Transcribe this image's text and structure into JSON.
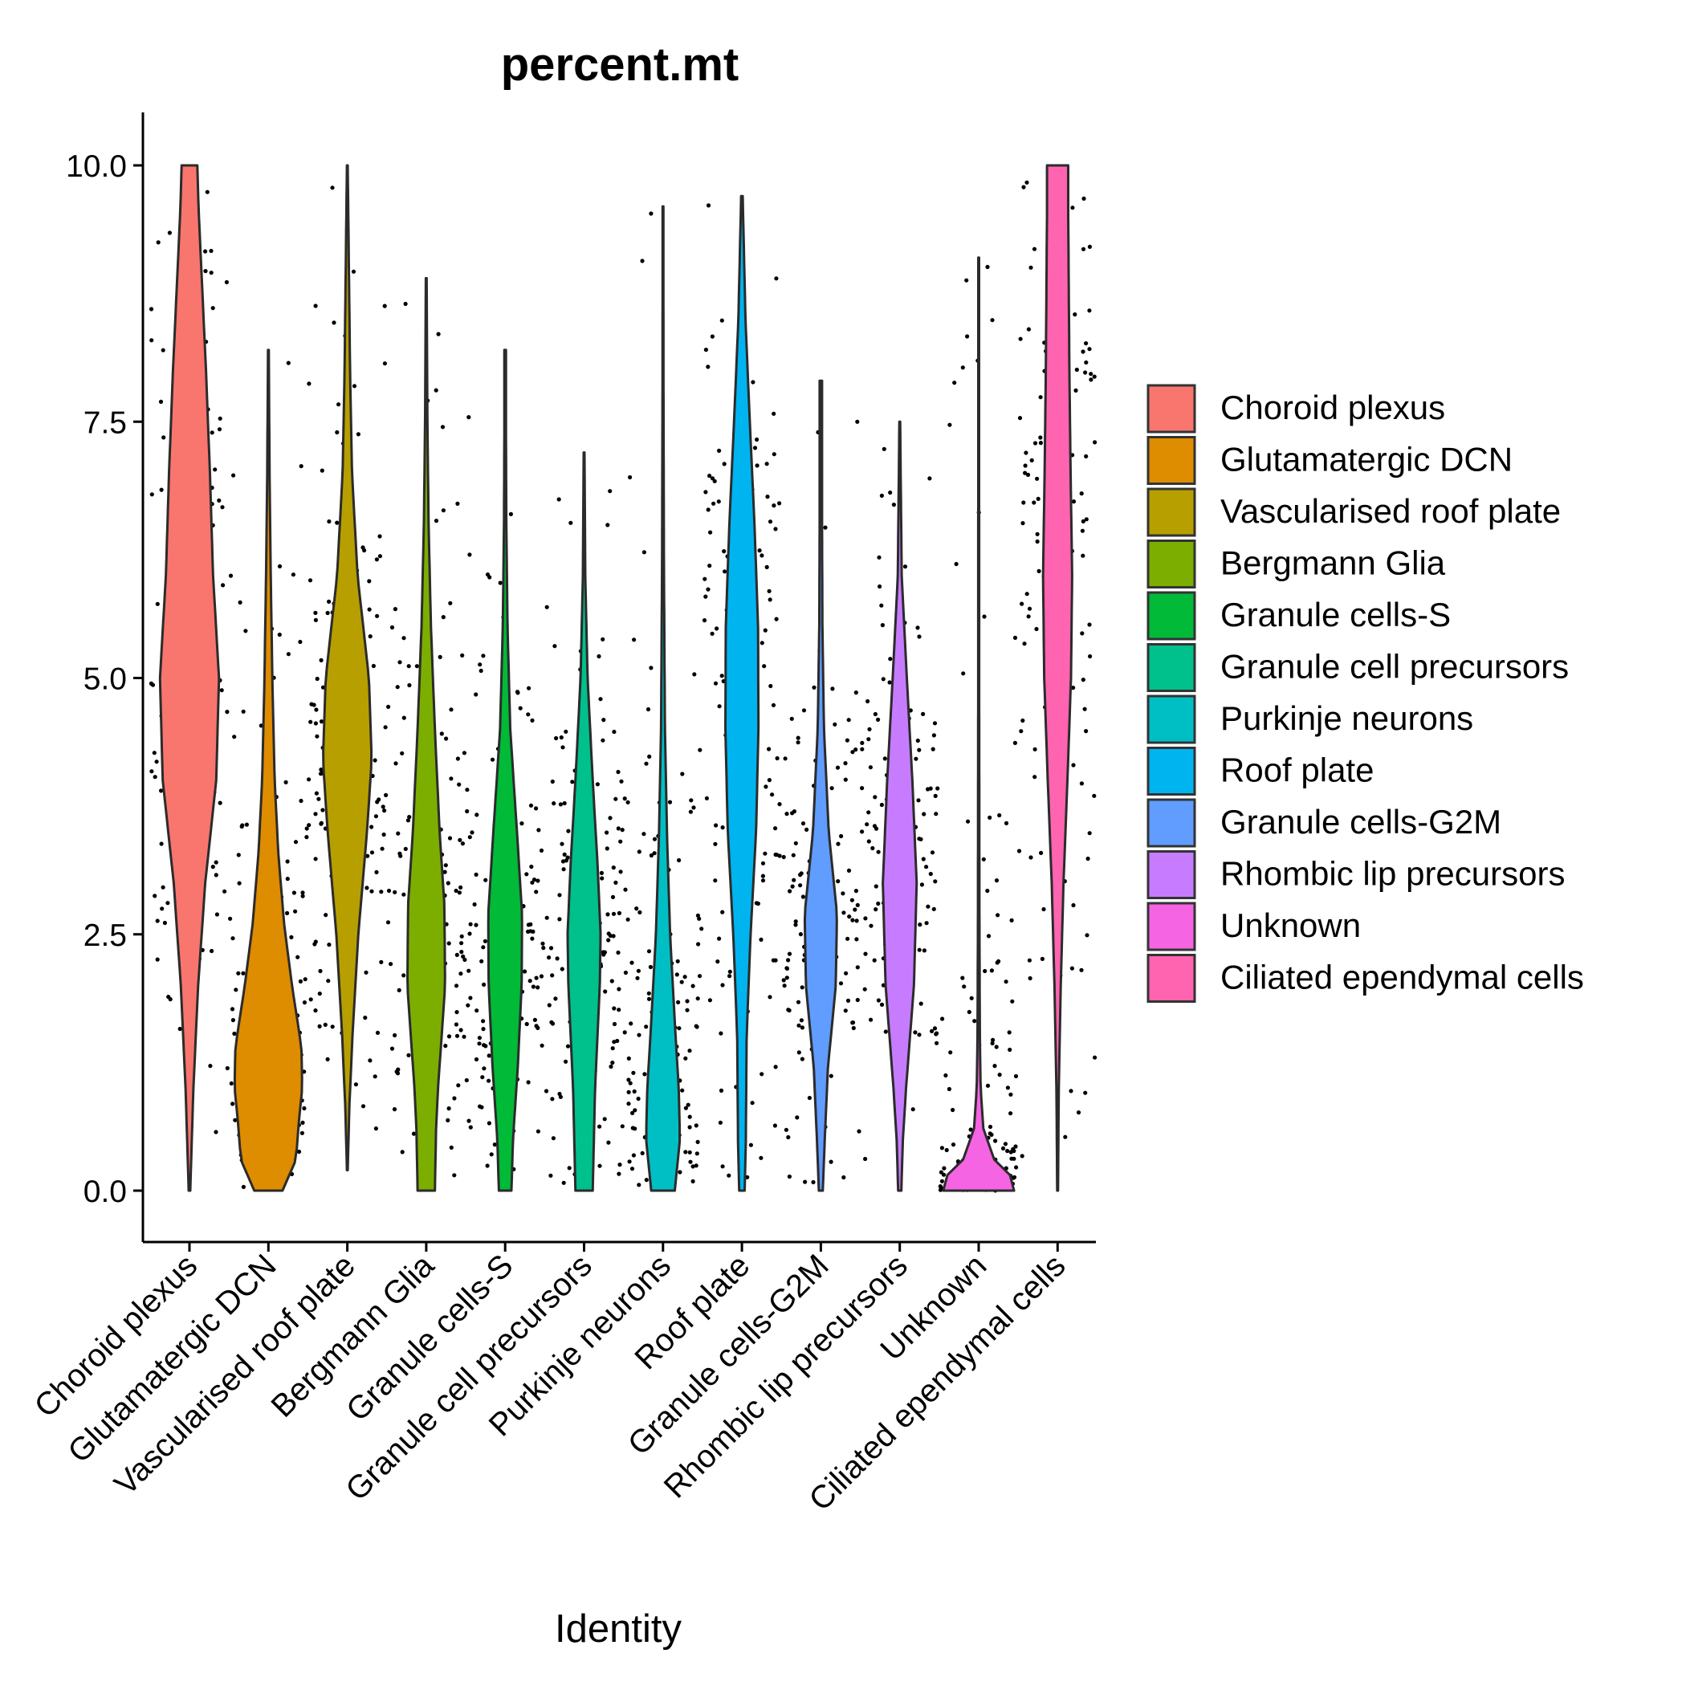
{
  "chart_data": {
    "type": "violin",
    "title": "percent.mt",
    "xlabel": "Identity",
    "ylabel": "",
    "ylim": [
      -0.5,
      10.5
    ],
    "yticks": [
      0.0,
      2.5,
      5.0,
      7.5,
      10.0
    ],
    "ytick_labels": [
      "0.0",
      "2.5",
      "5.0",
      "7.5",
      "10.0"
    ],
    "grid": false,
    "legend": "right",
    "categories": [
      "Choroid plexus",
      "Glutamatergic DCN",
      "Vascularised roof plate",
      "Bergmann Glia",
      "Granule cells-S",
      "Granule cell precursors",
      "Purkinje neurons",
      "Roof plate",
      "Granule cells-G2M",
      "Rhombic lip precursors",
      "Unknown",
      "Ciliated ependymal cells"
    ],
    "colors": [
      "#F8766D",
      "#DE8C00",
      "#B79F00",
      "#7CAE00",
      "#00BA38",
      "#00C08B",
      "#00BFC4",
      "#00B4F0",
      "#619CFF",
      "#C77CFF",
      "#F564E3",
      "#FF64B0"
    ],
    "series": [
      {
        "name": "Choroid plexus",
        "min": 0.0,
        "max": 10.0,
        "profile": [
          [
            0.0,
            0.2
          ],
          [
            0.5,
            0.6
          ],
          [
            1.0,
            1.0
          ],
          [
            2.0,
            2.2
          ],
          [
            3.0,
            4.0
          ],
          [
            4.0,
            6.8
          ],
          [
            5.0,
            7.5
          ],
          [
            6.0,
            6.0
          ],
          [
            7.0,
            5.2
          ],
          [
            8.0,
            4.2
          ],
          [
            9.0,
            3.0
          ],
          [
            9.6,
            2.3
          ],
          [
            10.0,
            2.0
          ]
        ]
      },
      {
        "name": "Glutamatergic DCN",
        "min": 0.0,
        "max": 8.2,
        "profile": [
          [
            0.0,
            3.6
          ],
          [
            0.3,
            7.0
          ],
          [
            0.7,
            7.8
          ],
          [
            1.0,
            8.6
          ],
          [
            1.4,
            8.4
          ],
          [
            2.0,
            6.0
          ],
          [
            2.6,
            4.0
          ],
          [
            3.3,
            2.5
          ],
          [
            4.0,
            1.6
          ],
          [
            5.0,
            1.0
          ],
          [
            6.0,
            0.6
          ],
          [
            7.0,
            0.3
          ],
          [
            8.2,
            0.1
          ]
        ]
      },
      {
        "name": "Vascularised roof plate",
        "min": 0.2,
        "max": 10.0,
        "profile": [
          [
            0.2,
            0.1
          ],
          [
            0.8,
            0.5
          ],
          [
            1.5,
            1.3
          ],
          [
            2.5,
            2.8
          ],
          [
            3.5,
            5.0
          ],
          [
            4.2,
            6.2
          ],
          [
            5.0,
            5.5
          ],
          [
            6.0,
            2.6
          ],
          [
            7.0,
            1.2
          ],
          [
            8.0,
            0.7
          ],
          [
            9.0,
            0.4
          ],
          [
            10.0,
            0.1
          ]
        ]
      },
      {
        "name": "Bergmann Glia",
        "min": 0.0,
        "max": 8.9,
        "profile": [
          [
            0.0,
            2.2
          ],
          [
            0.6,
            2.5
          ],
          [
            1.0,
            3.0
          ],
          [
            2.0,
            4.8
          ],
          [
            2.8,
            4.6
          ],
          [
            3.5,
            3.4
          ],
          [
            4.5,
            2.2
          ],
          [
            5.5,
            1.2
          ],
          [
            6.5,
            0.6
          ],
          [
            7.5,
            0.3
          ],
          [
            8.9,
            0.1
          ]
        ]
      },
      {
        "name": "Granule cells-S",
        "min": 0.0,
        "max": 8.2,
        "profile": [
          [
            0.0,
            1.6
          ],
          [
            0.5,
            2.0
          ],
          [
            1.2,
            3.2
          ],
          [
            2.0,
            4.2
          ],
          [
            2.7,
            4.3
          ],
          [
            3.5,
            3.0
          ],
          [
            4.5,
            1.3
          ],
          [
            5.5,
            0.6
          ],
          [
            6.5,
            0.3
          ],
          [
            7.5,
            0.2
          ],
          [
            8.2,
            0.2
          ]
        ]
      },
      {
        "name": "Granule cell precursors",
        "min": 0.0,
        "max": 7.2,
        "profile": [
          [
            0.0,
            2.2
          ],
          [
            0.5,
            2.5
          ],
          [
            1.0,
            2.8
          ],
          [
            2.0,
            4.0
          ],
          [
            2.5,
            4.2
          ],
          [
            3.2,
            3.4
          ],
          [
            4.0,
            2.2
          ],
          [
            5.0,
            0.9
          ],
          [
            6.0,
            0.3
          ],
          [
            7.2,
            0.1
          ]
        ]
      },
      {
        "name": "Purkinje neurons",
        "min": 0.0,
        "max": 9.6,
        "profile": [
          [
            0.0,
            3.0
          ],
          [
            0.5,
            4.3
          ],
          [
            1.0,
            4.0
          ],
          [
            1.5,
            3.2
          ],
          [
            2.5,
            1.8
          ],
          [
            3.5,
            1.0
          ],
          [
            4.5,
            0.5
          ],
          [
            6.0,
            0.25
          ],
          [
            8.0,
            0.12
          ],
          [
            9.6,
            0.1
          ]
        ]
      },
      {
        "name": "Roof plate",
        "min": 0.0,
        "max": 9.7,
        "profile": [
          [
            0.0,
            0.7
          ],
          [
            0.5,
            1.0
          ],
          [
            1.5,
            1.2
          ],
          [
            2.5,
            2.2
          ],
          [
            3.5,
            3.6
          ],
          [
            4.5,
            4.2
          ],
          [
            5.5,
            4.1
          ],
          [
            6.5,
            3.2
          ],
          [
            7.5,
            2.0
          ],
          [
            8.5,
            0.9
          ],
          [
            9.7,
            0.2
          ]
        ]
      },
      {
        "name": "Granule cells-G2M",
        "min": 0.0,
        "max": 7.9,
        "profile": [
          [
            0.0,
            0.5
          ],
          [
            0.5,
            1.0
          ],
          [
            1.2,
            1.8
          ],
          [
            2.0,
            3.8
          ],
          [
            2.7,
            4.1
          ],
          [
            3.5,
            2.0
          ],
          [
            4.5,
            0.8
          ],
          [
            5.5,
            0.4
          ],
          [
            6.5,
            0.3
          ],
          [
            7.9,
            0.3
          ]
        ]
      },
      {
        "name": "Rhombic lip precursors",
        "min": 0.0,
        "max": 7.5,
        "profile": [
          [
            0.0,
            0.4
          ],
          [
            0.5,
            0.8
          ],
          [
            1.0,
            1.6
          ],
          [
            2.0,
            3.6
          ],
          [
            3.0,
            4.3
          ],
          [
            4.0,
            3.2
          ],
          [
            5.0,
            1.8
          ],
          [
            6.0,
            0.5
          ],
          [
            7.5,
            0.1
          ]
        ]
      },
      {
        "name": "Unknown",
        "min": 0.0,
        "max": 9.1,
        "profile": [
          [
            0.0,
            9.0
          ],
          [
            0.15,
            8.0
          ],
          [
            0.3,
            4.0
          ],
          [
            0.6,
            1.2
          ],
          [
            1.0,
            0.5
          ],
          [
            1.5,
            0.3
          ],
          [
            2.5,
            0.2
          ],
          [
            5.0,
            0.12
          ],
          [
            9.1,
            0.1
          ]
        ]
      },
      {
        "name": "Ciliated ependymal cells",
        "min": 0.0,
        "max": 10.0,
        "profile": [
          [
            0.0,
            0.1
          ],
          [
            1.0,
            0.3
          ],
          [
            2.0,
            0.8
          ],
          [
            3.0,
            1.5
          ],
          [
            4.0,
            2.5
          ],
          [
            5.0,
            3.4
          ],
          [
            6.0,
            3.7
          ],
          [
            7.0,
            3.3
          ],
          [
            8.0,
            3.0
          ],
          [
            9.0,
            2.8
          ],
          [
            9.5,
            2.7
          ],
          [
            10.0,
            2.7
          ]
        ]
      }
    ]
  }
}
